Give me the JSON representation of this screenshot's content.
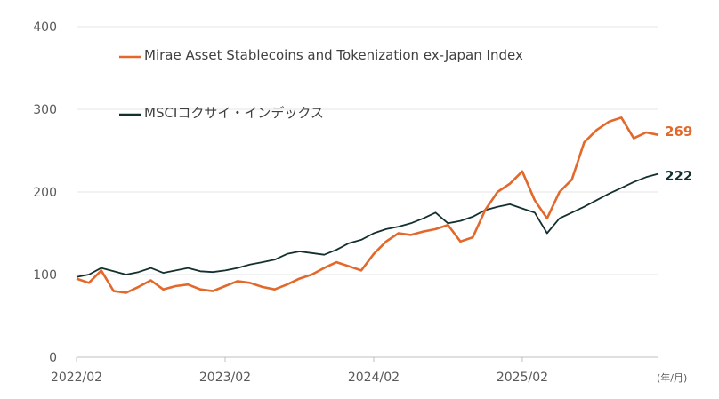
{
  "colors": {
    "index": "#E2692B",
    "msci": "#13302F",
    "grid": "#e6e6e6",
    "axis": "#bfbfbf",
    "text": "#595959"
  },
  "chart_data": {
    "type": "line",
    "ylim": [
      0,
      400
    ],
    "yticks": [
      "0",
      "100",
      "200",
      "300",
      "400"
    ],
    "xticks": [
      "2022/02",
      "2023/02",
      "2024/02",
      "2025/02"
    ],
    "xunit": "(年/月)",
    "grid": true,
    "legend_position": "top-left",
    "series": [
      {
        "name": "Mirae Asset Stablecoins and Tokenization ex-Japan Index",
        "end_label": "269",
        "values": [
          [
            "2022/02",
            95
          ],
          [
            "2022/03",
            90
          ],
          [
            "2022/04",
            105
          ],
          [
            "2022/05",
            80
          ],
          [
            "2022/06",
            78
          ],
          [
            "2022/07",
            85
          ],
          [
            "2022/08",
            93
          ],
          [
            "2022/09",
            82
          ],
          [
            "2022/10",
            86
          ],
          [
            "2022/11",
            88
          ],
          [
            "2022/12",
            82
          ],
          [
            "2023/01",
            80
          ],
          [
            "2023/02",
            86
          ],
          [
            "2023/03",
            92
          ],
          [
            "2023/04",
            90
          ],
          [
            "2023/05",
            85
          ],
          [
            "2023/06",
            82
          ],
          [
            "2023/07",
            88
          ],
          [
            "2023/08",
            95
          ],
          [
            "2023/09",
            100
          ],
          [
            "2023/10",
            108
          ],
          [
            "2023/11",
            115
          ],
          [
            "2023/12",
            110
          ],
          [
            "2024/01",
            105
          ],
          [
            "2024/02",
            125
          ],
          [
            "2024/03",
            140
          ],
          [
            "2024/04",
            150
          ],
          [
            "2024/05",
            148
          ],
          [
            "2024/06",
            152
          ],
          [
            "2024/07",
            155
          ],
          [
            "2024/08",
            160
          ],
          [
            "2024/09",
            140
          ],
          [
            "2024/10",
            145
          ],
          [
            "2024/11",
            178
          ],
          [
            "2024/12",
            200
          ],
          [
            "2025/01",
            210
          ],
          [
            "2025/02",
            225
          ],
          [
            "2025/03",
            190
          ],
          [
            "2025/04",
            168
          ],
          [
            "2025/05",
            200
          ],
          [
            "2025/06",
            215
          ],
          [
            "2025/07",
            260
          ],
          [
            "2025/08",
            275
          ],
          [
            "2025/09",
            285
          ],
          [
            "2025/10",
            290
          ],
          [
            "2025/11",
            265
          ],
          [
            "2025/12",
            272
          ],
          [
            "2026/01",
            269
          ]
        ]
      },
      {
        "name": "MSCIコクサイ・インデックス",
        "end_label": "222",
        "values": [
          [
            "2022/02",
            97
          ],
          [
            "2022/03",
            100
          ],
          [
            "2022/04",
            108
          ],
          [
            "2022/05",
            104
          ],
          [
            "2022/06",
            100
          ],
          [
            "2022/07",
            103
          ],
          [
            "2022/08",
            108
          ],
          [
            "2022/09",
            102
          ],
          [
            "2022/10",
            105
          ],
          [
            "2022/11",
            108
          ],
          [
            "2022/12",
            104
          ],
          [
            "2023/01",
            103
          ],
          [
            "2023/02",
            105
          ],
          [
            "2023/03",
            108
          ],
          [
            "2023/04",
            112
          ],
          [
            "2023/05",
            115
          ],
          [
            "2023/06",
            118
          ],
          [
            "2023/07",
            125
          ],
          [
            "2023/08",
            128
          ],
          [
            "2023/09",
            126
          ],
          [
            "2023/10",
            124
          ],
          [
            "2023/11",
            130
          ],
          [
            "2023/12",
            138
          ],
          [
            "2024/01",
            142
          ],
          [
            "2024/02",
            150
          ],
          [
            "2024/03",
            155
          ],
          [
            "2024/04",
            158
          ],
          [
            "2024/05",
            162
          ],
          [
            "2024/06",
            168
          ],
          [
            "2024/07",
            175
          ],
          [
            "2024/08",
            162
          ],
          [
            "2024/09",
            165
          ],
          [
            "2024/10",
            170
          ],
          [
            "2024/11",
            178
          ],
          [
            "2024/12",
            182
          ],
          [
            "2025/01",
            185
          ],
          [
            "2025/02",
            180
          ],
          [
            "2025/03",
            175
          ],
          [
            "2025/04",
            150
          ],
          [
            "2025/05",
            168
          ],
          [
            "2025/06",
            175
          ],
          [
            "2025/07",
            182
          ],
          [
            "2025/08",
            190
          ],
          [
            "2025/09",
            198
          ],
          [
            "2025/10",
            205
          ],
          [
            "2025/11",
            212
          ],
          [
            "2025/12",
            218
          ],
          [
            "2026/01",
            222
          ]
        ]
      }
    ]
  }
}
